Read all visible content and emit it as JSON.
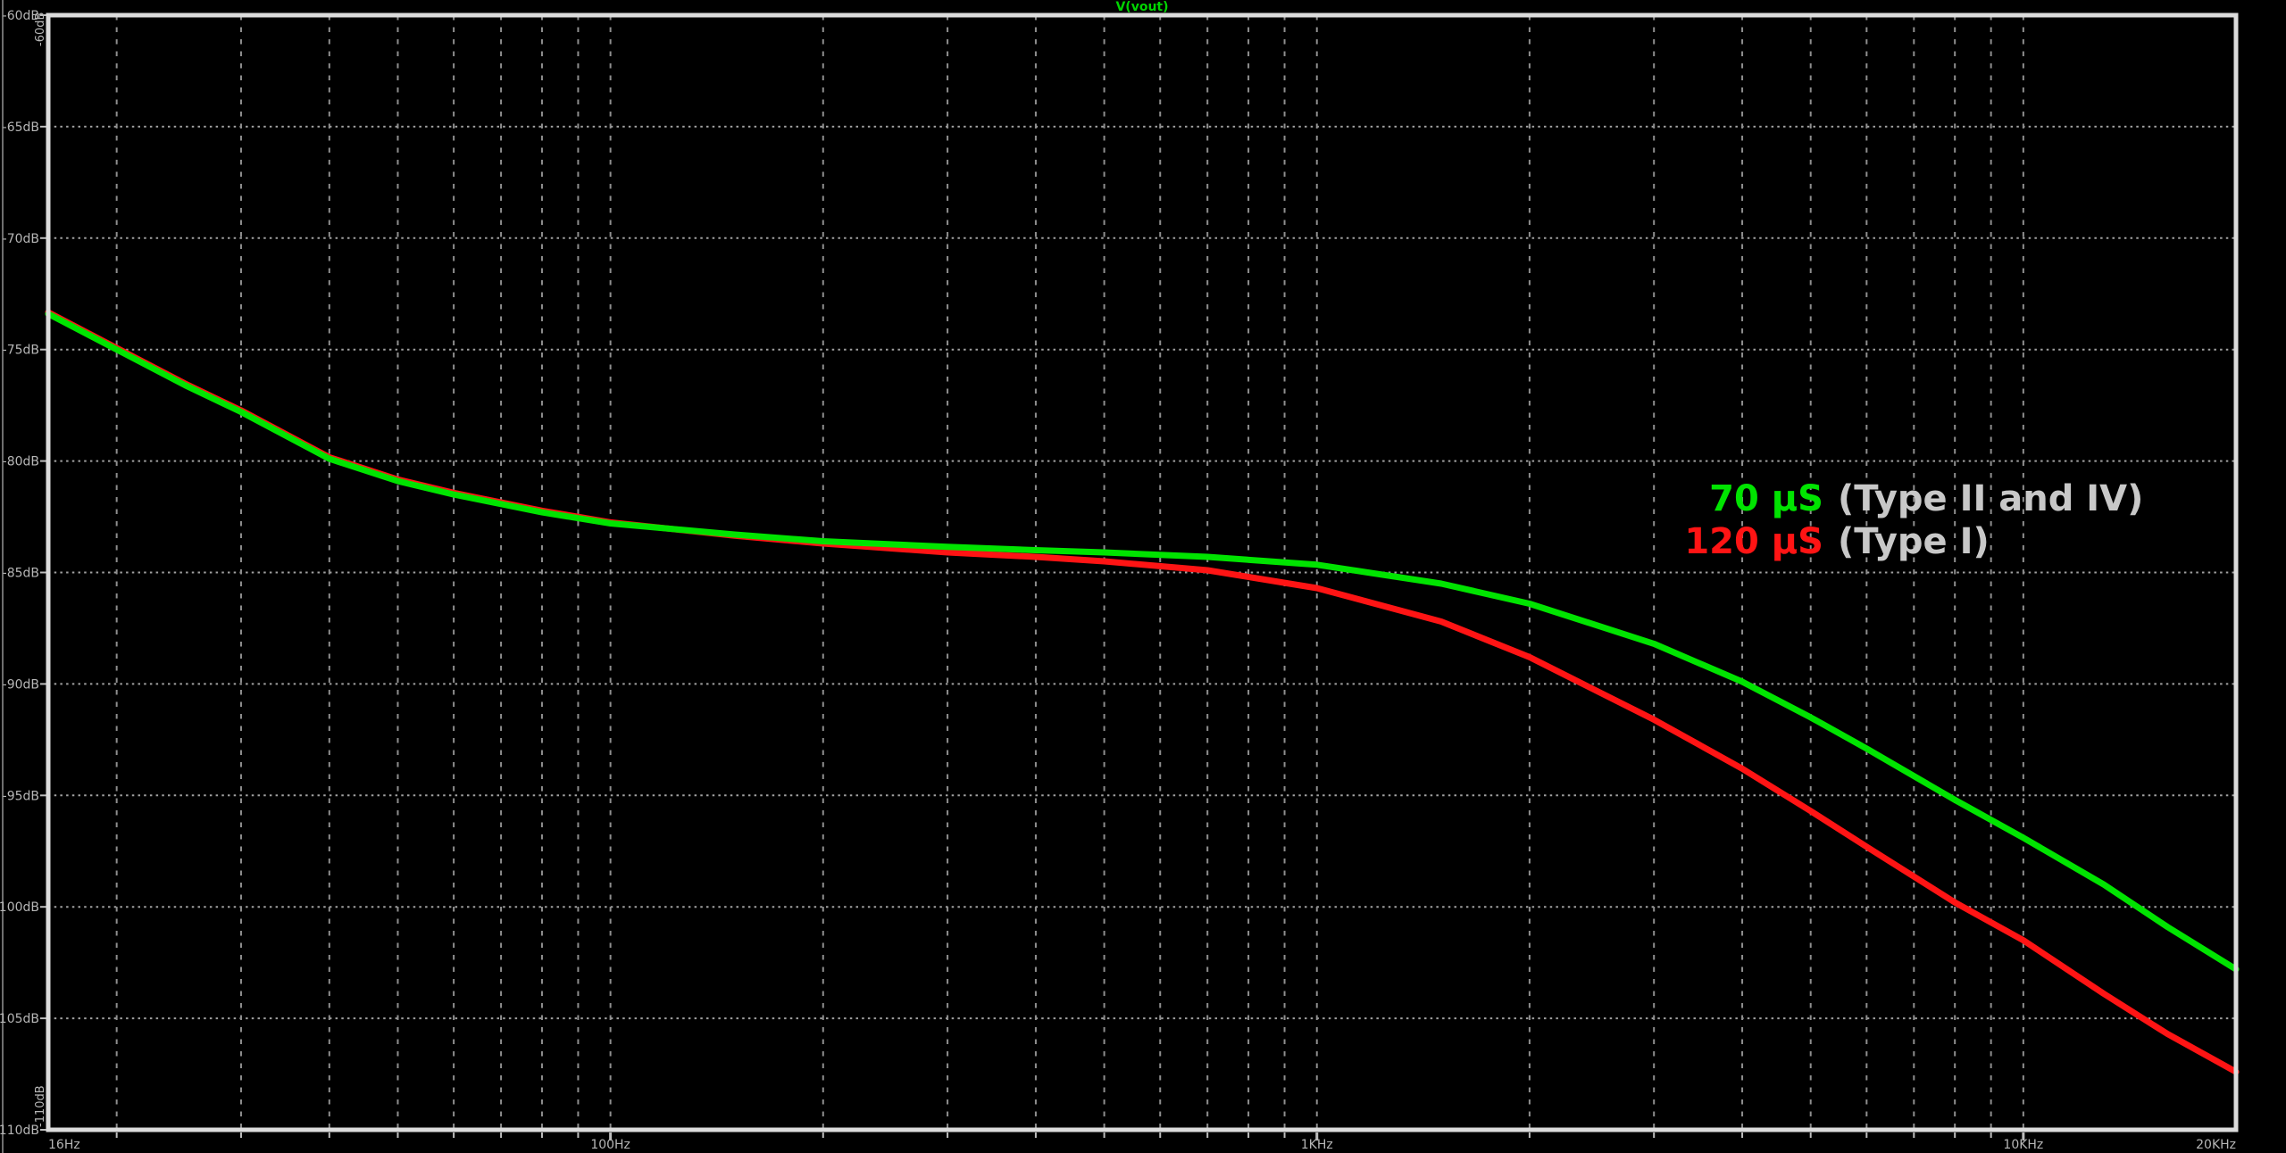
{
  "window": {
    "background": "#000000",
    "left_edge_color": "#6e6e6e",
    "border_color": "#dcdcdc",
    "grid_color": "#9a9a9a",
    "tick_label_color": "#b6b6b6"
  },
  "title": {
    "text": "V(vout)",
    "color": "#00d400"
  },
  "axes": {
    "x": {
      "scale": "log",
      "min_hz": 16,
      "max_hz": 20000,
      "gridlines_hz": [
        20,
        30,
        40,
        50,
        60,
        70,
        80,
        90,
        100,
        200,
        300,
        400,
        500,
        600,
        700,
        800,
        900,
        1000,
        2000,
        3000,
        4000,
        5000,
        6000,
        7000,
        8000,
        9000,
        10000
      ],
      "major_ticks_hz": [
        100,
        1000,
        10000
      ],
      "tick_labels": [
        {
          "text": "16Hz",
          "hz": 16,
          "anchor": "start"
        },
        {
          "text": "100Hz",
          "hz": 100,
          "anchor": "middle"
        },
        {
          "text": "1KHz",
          "hz": 1000,
          "anchor": "middle"
        },
        {
          "text": "10KHz",
          "hz": 10000,
          "anchor": "middle"
        },
        {
          "text": "20KHz",
          "hz": 20000,
          "anchor": "end"
        }
      ]
    },
    "y": {
      "unit": "dB",
      "min_db": -110,
      "max_db": -60,
      "gridlines_db": [
        -65,
        -70,
        -75,
        -80,
        -85,
        -90,
        -95,
        -100,
        -105
      ],
      "tick_labels": [
        {
          "text": "-60dB",
          "db": -60
        },
        {
          "text": "-65dB",
          "db": -65
        },
        {
          "text": "-70dB",
          "db": -70
        },
        {
          "text": "-75dB",
          "db": -75
        },
        {
          "text": "-80dB",
          "db": -80
        },
        {
          "text": "-85dB",
          "db": -85
        },
        {
          "text": "-90dB",
          "db": -90
        },
        {
          "text": "-95dB",
          "db": -95
        },
        {
          "text": "-100dB",
          "db": -100
        },
        {
          "text": "-105dB",
          "db": -105
        },
        {
          "text": "-110dB",
          "db": -110
        }
      ],
      "corner_label_top": "-60dB",
      "corner_label_bottom": "-110dB"
    }
  },
  "legend": {
    "desc_color": "#c8c8c8",
    "rows": [
      {
        "value": "70 µS",
        "value_color": "#00e400",
        "desc": "(Type II and IV)"
      },
      {
        "value": "120 µS",
        "value_color": "#ff1414",
        "desc": "(Type I)"
      }
    ]
  },
  "chart_data": {
    "type": "line",
    "title": "V(vout)",
    "xlabel": "",
    "ylabel": "",
    "x_scale": "log",
    "xlim": [
      16,
      20000
    ],
    "ylim": [
      -110,
      -60
    ],
    "x_tick_labels": [
      "16Hz",
      "100Hz",
      "1KHz",
      "10KHz",
      "20KHz"
    ],
    "y_tick_labels": [
      "-60dB",
      "-65dB",
      "-70dB",
      "-75dB",
      "-80dB",
      "-85dB",
      "-90dB",
      "-95dB",
      "-100dB",
      "-105dB",
      "-110dB"
    ],
    "grid": true,
    "legend_position": "right-center",
    "series": [
      {
        "key": "green-70us",
        "name": "70 µS (Type II and IV)",
        "color": "#00e400",
        "x": [
          16,
          20,
          25,
          30,
          40,
          50,
          60,
          80,
          100,
          150,
          200,
          300,
          400,
          500,
          700,
          1000,
          1500,
          2000,
          3000,
          4000,
          5000,
          6000,
          8000,
          10000,
          13000,
          16000,
          20000
        ],
        "y": [
          -73.4,
          -75.0,
          -76.6,
          -77.8,
          -79.9,
          -80.9,
          -81.5,
          -82.3,
          -82.8,
          -83.3,
          -83.6,
          -83.85,
          -84.0,
          -84.1,
          -84.3,
          -84.65,
          -85.5,
          -86.4,
          -88.2,
          -89.9,
          -91.5,
          -92.9,
          -95.2,
          -96.9,
          -99.0,
          -100.9,
          -102.8
        ]
      },
      {
        "key": "red-120us",
        "name": "120 µS (Type I)",
        "color": "#ff1414",
        "x": [
          16,
          20,
          25,
          30,
          40,
          50,
          60,
          80,
          100,
          150,
          200,
          300,
          400,
          500,
          700,
          1000,
          1500,
          2000,
          3000,
          4000,
          5000,
          6000,
          8000,
          10000,
          13000,
          16000,
          20000
        ],
        "y": [
          -73.33,
          -74.93,
          -76.53,
          -77.73,
          -79.83,
          -80.83,
          -81.43,
          -82.23,
          -82.75,
          -83.35,
          -83.7,
          -84.1,
          -84.3,
          -84.5,
          -84.9,
          -85.7,
          -87.2,
          -88.8,
          -91.6,
          -93.8,
          -95.7,
          -97.3,
          -99.8,
          -101.5,
          -103.9,
          -105.7,
          -107.4
        ]
      }
    ]
  }
}
